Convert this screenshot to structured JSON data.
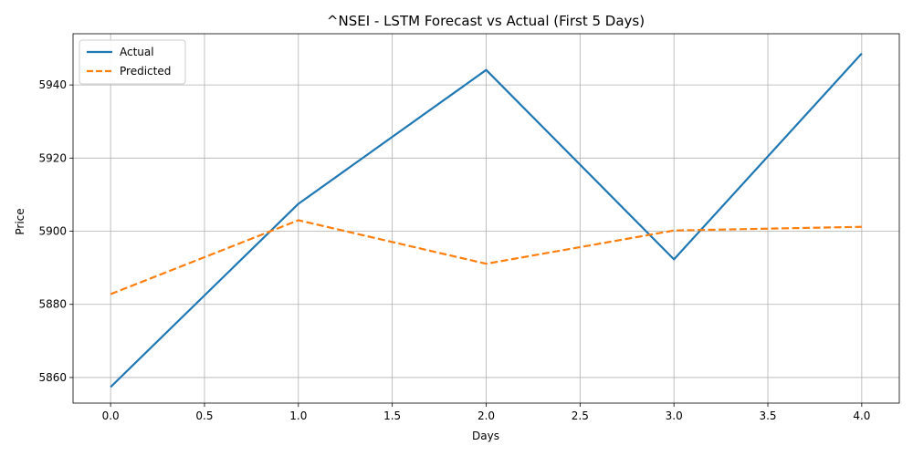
{
  "chart_data": {
    "type": "line",
    "title": "^NSEI - LSTM Forecast vs Actual (First 5 Days)",
    "xlabel": "Days",
    "ylabel": "Price",
    "x": [
      0,
      1,
      2,
      3,
      4
    ],
    "xlim": [
      -0.2,
      4.2
    ],
    "ylim": [
      5853,
      5954
    ],
    "x_ticks": [
      0.0,
      0.5,
      1.0,
      1.5,
      2.0,
      2.5,
      3.0,
      3.5,
      4.0
    ],
    "x_tick_labels": [
      "0.0",
      "0.5",
      "1.0",
      "1.5",
      "2.0",
      "2.5",
      "3.0",
      "3.5",
      "4.0"
    ],
    "y_ticks": [
      5860,
      5880,
      5900,
      5920,
      5940
    ],
    "y_tick_labels": [
      "5860",
      "5880",
      "5900",
      "5920",
      "5940"
    ],
    "grid": true,
    "legend_position": "top-left",
    "series": [
      {
        "name": "Actual",
        "values": [
          5857.4,
          5907.5,
          5944.1,
          5892.3,
          5948.6
        ],
        "color": "#1f77b4",
        "style": "solid"
      },
      {
        "name": "Predicted",
        "values": [
          5882.8,
          5903.0,
          5891.1,
          5900.2,
          5901.2
        ],
        "color": "#ff7f0e",
        "style": "dashed"
      }
    ]
  }
}
